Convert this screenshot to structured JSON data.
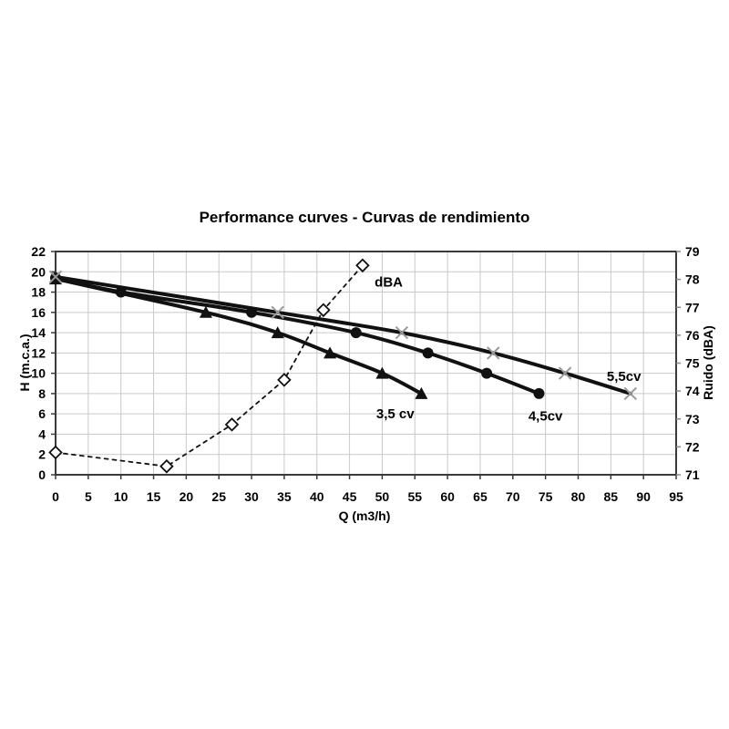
{
  "page": {
    "background_color": "#ffffff"
  },
  "chart_data": {
    "type": "line",
    "title": "Performance curves - Curvas de rendimiento",
    "xlabel": "Q (m3/h)",
    "ylabel_left": "H (m.c.a.)",
    "ylabel_right": "Ruido (dBA)",
    "xlim": [
      0,
      95
    ],
    "ylim_left": [
      0,
      22
    ],
    "ylim_right": [
      71,
      79
    ],
    "x_ticks": [
      0,
      5,
      10,
      15,
      20,
      25,
      30,
      35,
      40,
      45,
      50,
      55,
      60,
      65,
      70,
      75,
      80,
      85,
      90,
      95
    ],
    "y_left_ticks": [
      0,
      2,
      4,
      6,
      8,
      10,
      12,
      14,
      16,
      18,
      20,
      22
    ],
    "y_right_ticks": [
      71,
      72,
      73,
      74,
      75,
      76,
      77,
      78,
      79
    ],
    "grid": {
      "vertical": true,
      "horizontal": true
    },
    "legend_position": "none",
    "colors": {
      "axis": "#3a3a3a",
      "grid": "#c9c9c9",
      "text": "#000000",
      "line": "#111111",
      "x_marker": "#999999",
      "right_tick": "#888888",
      "marker_fill_open": "#ffffff"
    },
    "series": [
      {
        "name": "3,5 cv",
        "axis": "left",
        "marker": "triangle",
        "line_style": "solid",
        "line_width": 4,
        "points": [
          [
            0,
            19.3
          ],
          [
            23,
            16
          ],
          [
            34,
            14
          ],
          [
            42,
            12
          ],
          [
            50,
            10
          ],
          [
            56,
            8
          ]
        ]
      },
      {
        "name": "4,5cv",
        "axis": "left",
        "marker": "circle",
        "line_style": "solid",
        "line_width": 4,
        "points": [
          [
            0,
            19.4
          ],
          [
            10,
            18
          ],
          [
            30,
            16
          ],
          [
            46,
            14
          ],
          [
            57,
            12
          ],
          [
            66,
            10
          ],
          [
            74,
            8
          ]
        ]
      },
      {
        "name": "5,5cv",
        "axis": "left",
        "marker": "x",
        "line_style": "solid",
        "line_width": 4,
        "points": [
          [
            0,
            19.5
          ],
          [
            34,
            16
          ],
          [
            53,
            14
          ],
          [
            67,
            12
          ],
          [
            78,
            10
          ],
          [
            88,
            8
          ]
        ]
      },
      {
        "name": "dBA",
        "axis": "right",
        "marker": "diamond-open",
        "line_style": "dashed",
        "line_width": 1.8,
        "points": [
          [
            0,
            71.8
          ],
          [
            17,
            71.3
          ],
          [
            27,
            72.8
          ],
          [
            35,
            74.4
          ],
          [
            41,
            76.9
          ],
          [
            47,
            78.5
          ]
        ]
      }
    ],
    "annotations": [
      {
        "text": "dBA",
        "x": 51,
        "y": 19.0,
        "axis": "left"
      },
      {
        "text": "3,5 cv",
        "x": 52,
        "y": 6.0,
        "axis": "left"
      },
      {
        "text": "4,5cv",
        "x": 75,
        "y": 5.8,
        "axis": "left"
      },
      {
        "text": "5,5cv",
        "x": 87,
        "y": 9.7,
        "axis": "left"
      }
    ]
  }
}
